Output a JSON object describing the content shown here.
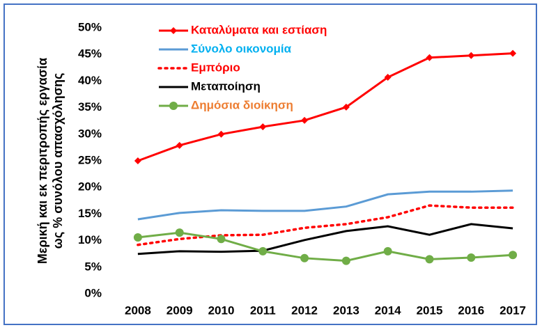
{
  "chart_data": {
    "type": "line",
    "y_label_lines": [
      "Μερική και εκ περιτροπής εργασία",
      "ως % συνόλου απασχόλησης"
    ],
    "categories": [
      "2008",
      "2009",
      "2010",
      "2011",
      "2012",
      "2013",
      "2014",
      "2015",
      "2016",
      "2017"
    ],
    "series": [
      {
        "name": "Καταλύματα και εστίαση",
        "color": "#ff0000",
        "legend_text_color": "#ff0000",
        "dash": "solid",
        "marker": "diamond",
        "values": [
          25.0,
          27.9,
          30.0,
          31.4,
          32.6,
          35.1,
          40.7,
          44.4,
          44.8,
          45.2
        ]
      },
      {
        "name": "Σύνολο οικονομία",
        "color": "#5b9bd5",
        "legend_text_color": "#00b0f0",
        "dash": "solid",
        "marker": "none",
        "values": [
          14.0,
          15.2,
          15.7,
          15.6,
          15.6,
          16.4,
          18.7,
          19.2,
          19.2,
          19.4
        ]
      },
      {
        "name": "Εμπόριο",
        "color": "#ff0000",
        "legend_text_color": "#ff0000",
        "dash": "dotted",
        "marker": "none",
        "values": [
          9.2,
          10.3,
          11.0,
          11.1,
          12.4,
          13.1,
          14.4,
          16.6,
          16.2,
          16.2
        ]
      },
      {
        "name": "Μεταποίηση",
        "color": "#000000",
        "legend_text_color": "#000000",
        "dash": "solid",
        "marker": "none",
        "values": [
          7.5,
          8.0,
          7.9,
          8.1,
          10.1,
          11.8,
          12.7,
          11.1,
          13.1,
          12.3
        ]
      },
      {
        "name": "Δημόσια διοίκηση",
        "color": "#70ad47",
        "legend_text_color": "#ed7d31",
        "dash": "solid",
        "marker": "circle",
        "values": [
          10.6,
          11.5,
          10.3,
          8.0,
          6.7,
          6.2,
          8.0,
          6.5,
          6.8,
          7.3
        ]
      }
    ],
    "ylim": [
      0,
      50
    ],
    "yticks": [
      {
        "value": 0,
        "label": "0%"
      },
      {
        "value": 5,
        "label": "5%"
      },
      {
        "value": 10,
        "label": "10%"
      },
      {
        "value": 15,
        "label": "15%"
      },
      {
        "value": 20,
        "label": "20%"
      },
      {
        "value": 25,
        "label": "25%"
      },
      {
        "value": 30,
        "label": "30%"
      },
      {
        "value": 35,
        "label": "35%"
      },
      {
        "value": 40,
        "label": "40%"
      },
      {
        "value": 45,
        "label": "45%"
      },
      {
        "value": 50,
        "label": "50%"
      }
    ],
    "grid": false,
    "legend": "upper left"
  }
}
